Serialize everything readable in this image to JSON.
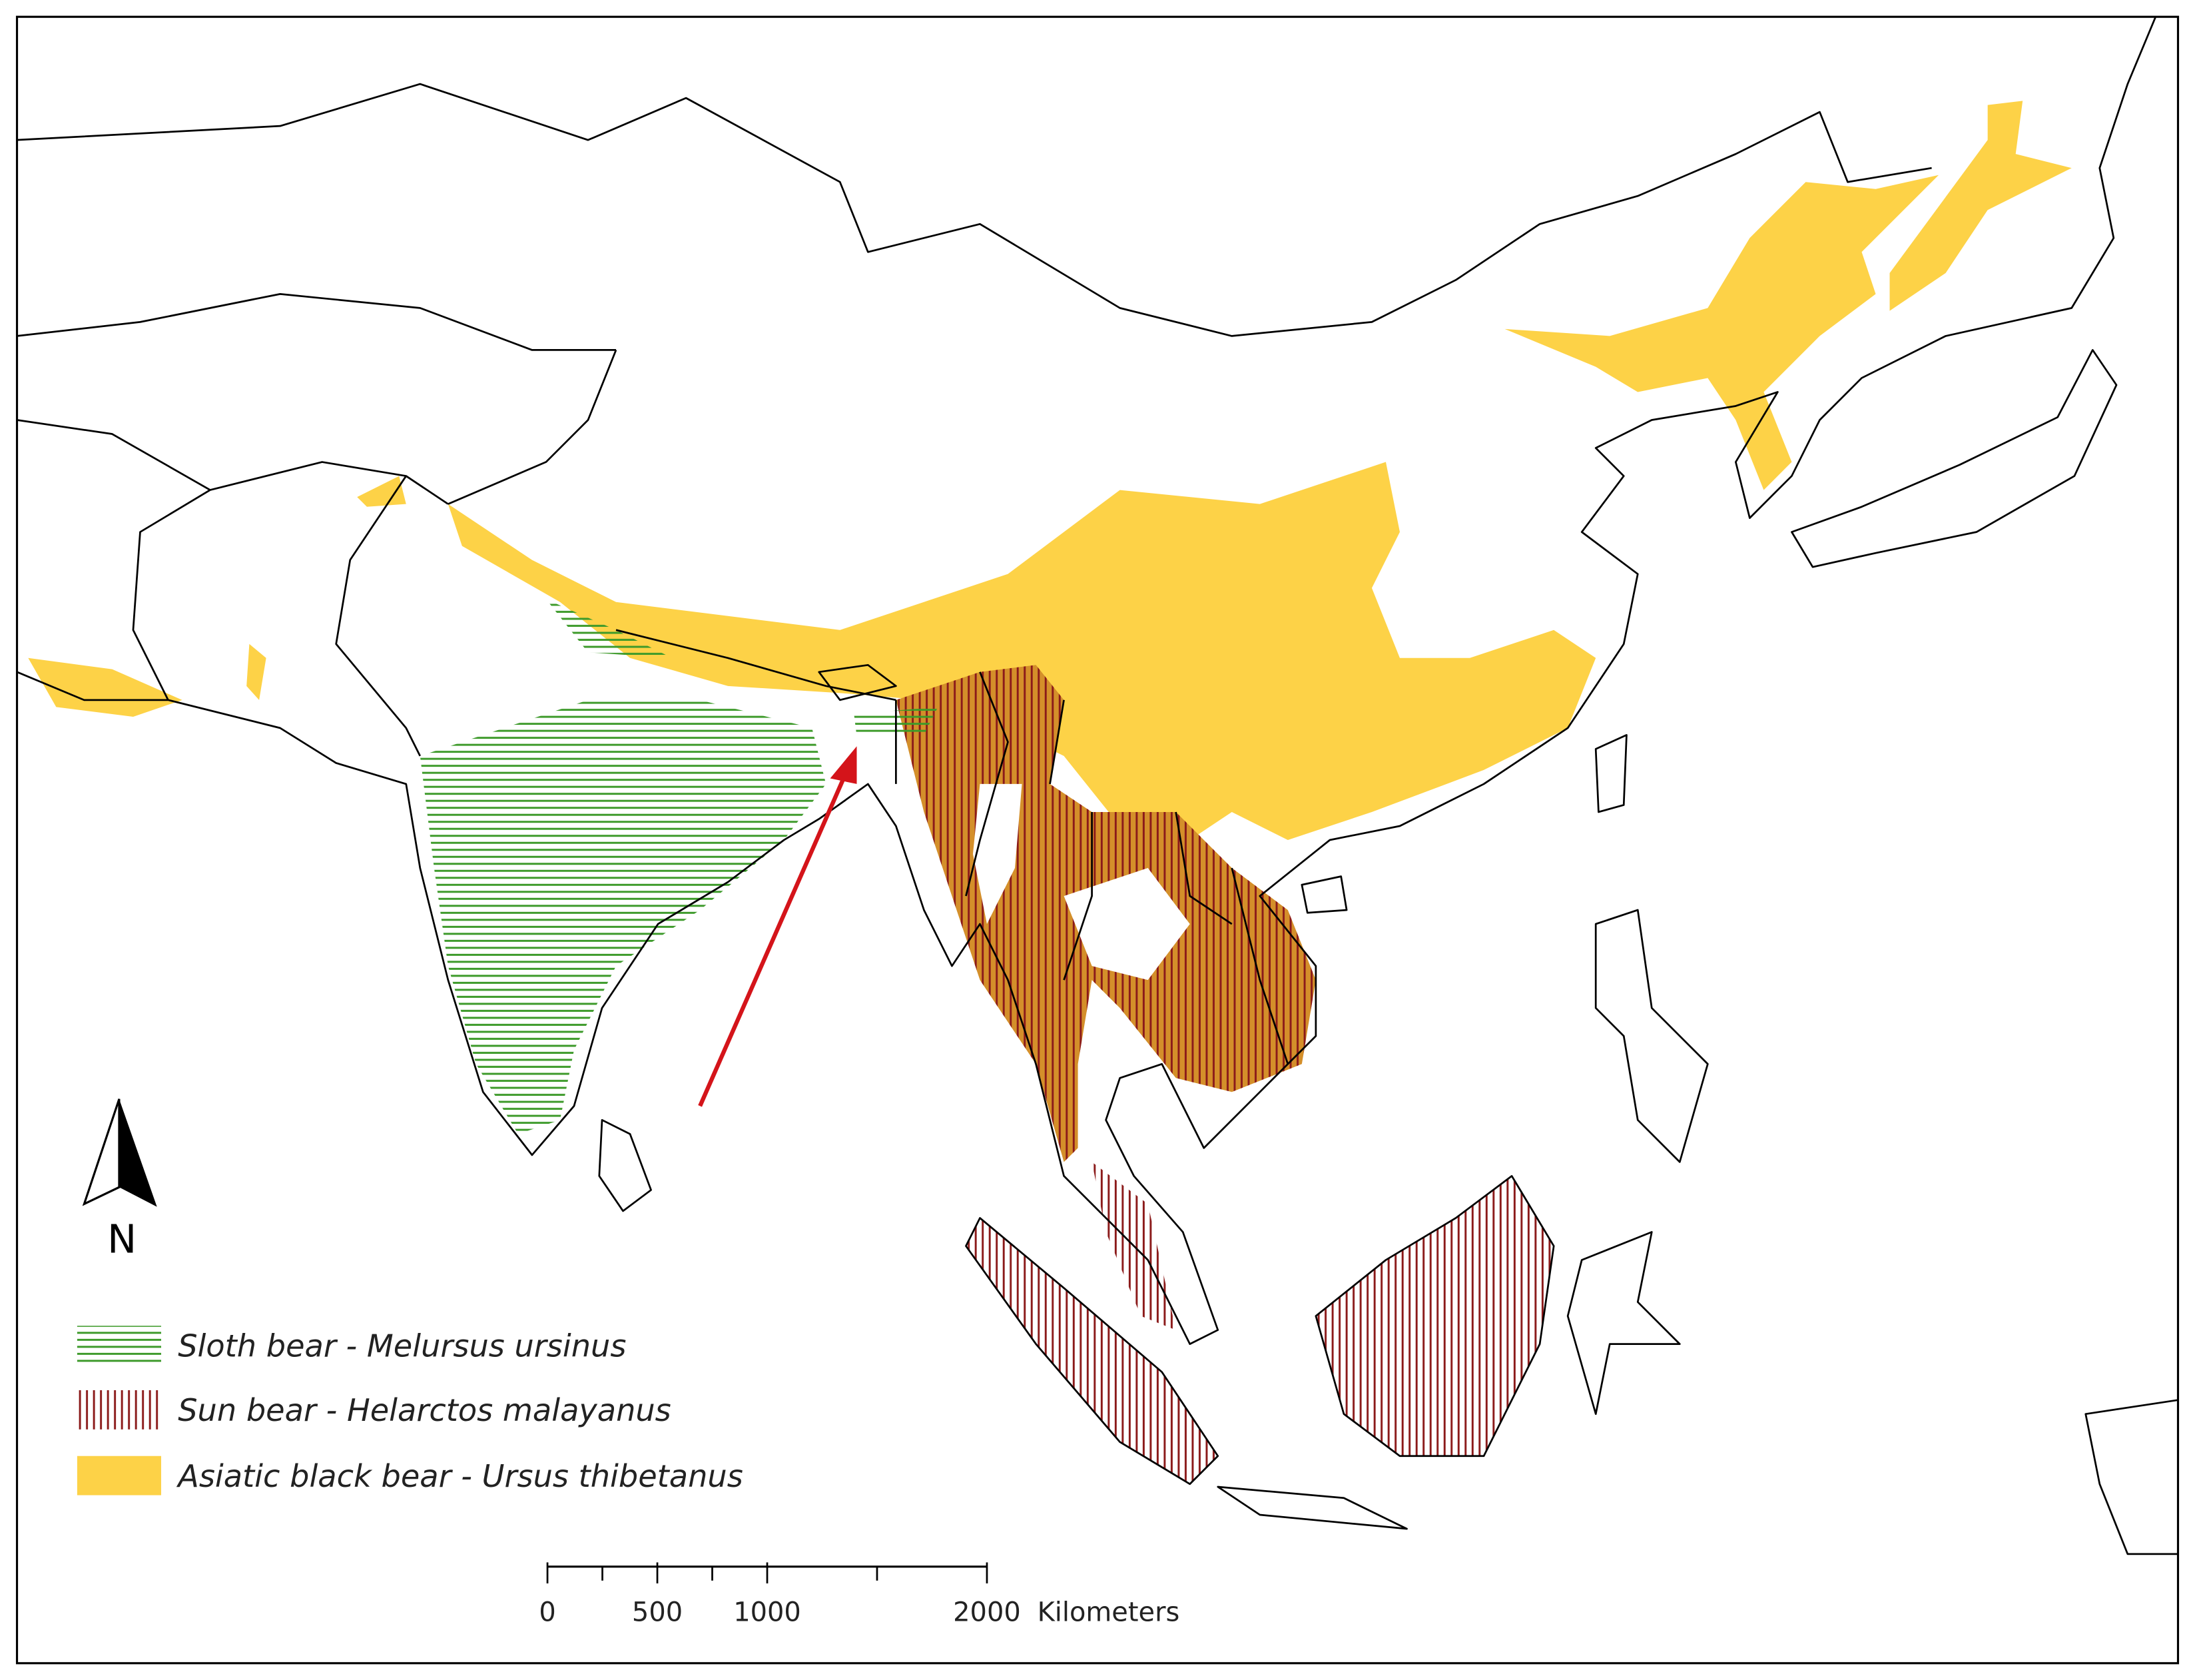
{
  "legend": [
    {
      "label": "Sloth bear - Melursus ursinus"
    },
    {
      "label": "Sun bear - Helarctos malayanus"
    },
    {
      "label": "Asiatic black bear - Ursus thibetanus"
    }
  ],
  "north_arrow": {
    "label": "N"
  },
  "scale_bar": {
    "range": [
      0,
      2000
    ],
    "ticks": [
      0,
      500,
      1000,
      2000
    ],
    "minor_ticks": [
      250,
      750,
      1500
    ],
    "unit": "Kilometers"
  }
}
